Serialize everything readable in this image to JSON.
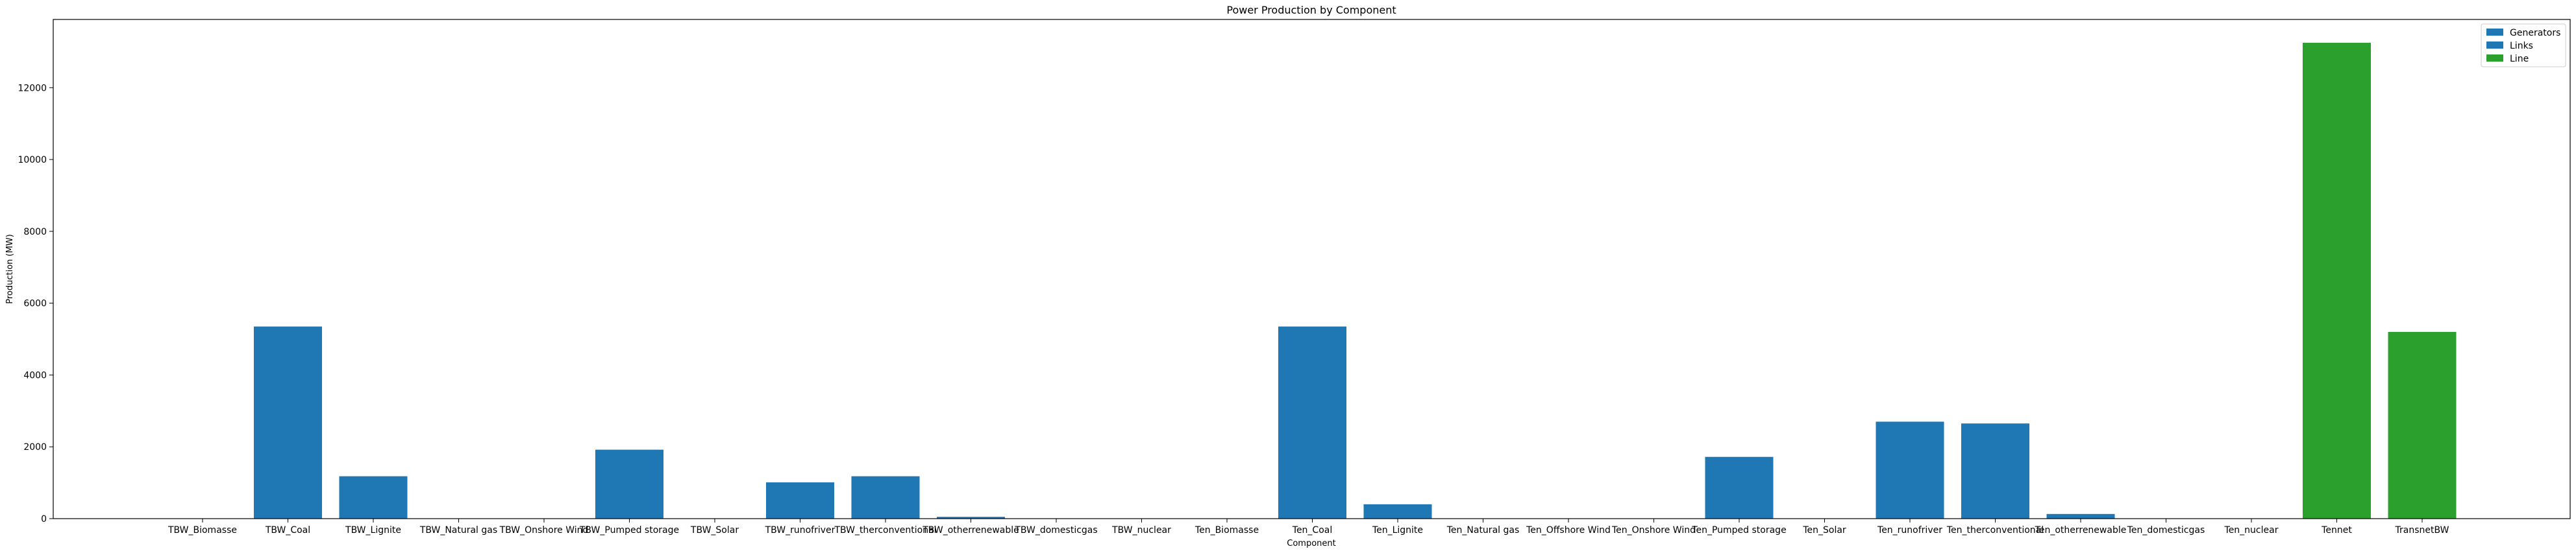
{
  "chart_data": {
    "type": "bar",
    "title": "Power Production by Component",
    "xlabel": "Component",
    "ylabel": "Production (MW)",
    "ylim": [
      0,
      13900
    ],
    "yticks": [
      0,
      2000,
      4000,
      6000,
      8000,
      10000,
      12000
    ],
    "grid": false,
    "legend_position": "top-right",
    "categories": [
      "TBW_Biomasse",
      "TBW_Coal",
      "TBW_Lignite",
      "TBW_Natural gas",
      "TBW_Onshore Wind",
      "TBW_Pumped storage",
      "TBW_Solar",
      "TBW_runofriver",
      "TBW_therconventional",
      "TBW_otherrenewable",
      "TBW_domesticgas",
      "TBW_nuclear",
      "Ten_Biomasse",
      "Ten_Coal",
      "Ten_Lignite",
      "Ten_Natural gas",
      "Ten_Offshore Wind",
      "Ten_Onshore Wind",
      "Ten_Pumped storage",
      "Ten_Solar",
      "Ten_runofriver",
      "Ten_therconventional",
      "Ten_otherrenewable",
      "Ten_domesticgas",
      "Ten_nuclear",
      "Tennet",
      "TransnetBW"
    ],
    "series": [
      {
        "name": "Generators",
        "color": "#1f77b4",
        "values": [
          0,
          5350,
          1180,
          0,
          0,
          1920,
          0,
          1010,
          1180,
          50,
          0,
          0,
          0,
          5350,
          400,
          0,
          0,
          0,
          1720,
          0,
          2700,
          2650,
          130,
          0,
          0,
          null,
          null
        ]
      },
      {
        "name": "Links",
        "color": "#1f77b4",
        "values": [
          null,
          null,
          null,
          null,
          null,
          null,
          null,
          null,
          null,
          null,
          null,
          null,
          null,
          null,
          null,
          null,
          null,
          null,
          null,
          null,
          null,
          null,
          null,
          null,
          null,
          null,
          null
        ]
      },
      {
        "name": "Line",
        "color": "#2ca02c",
        "values": [
          null,
          null,
          null,
          null,
          null,
          null,
          null,
          null,
          null,
          null,
          null,
          null,
          null,
          null,
          null,
          null,
          null,
          null,
          null,
          null,
          null,
          null,
          null,
          null,
          null,
          13250,
          5200
        ]
      }
    ]
  }
}
